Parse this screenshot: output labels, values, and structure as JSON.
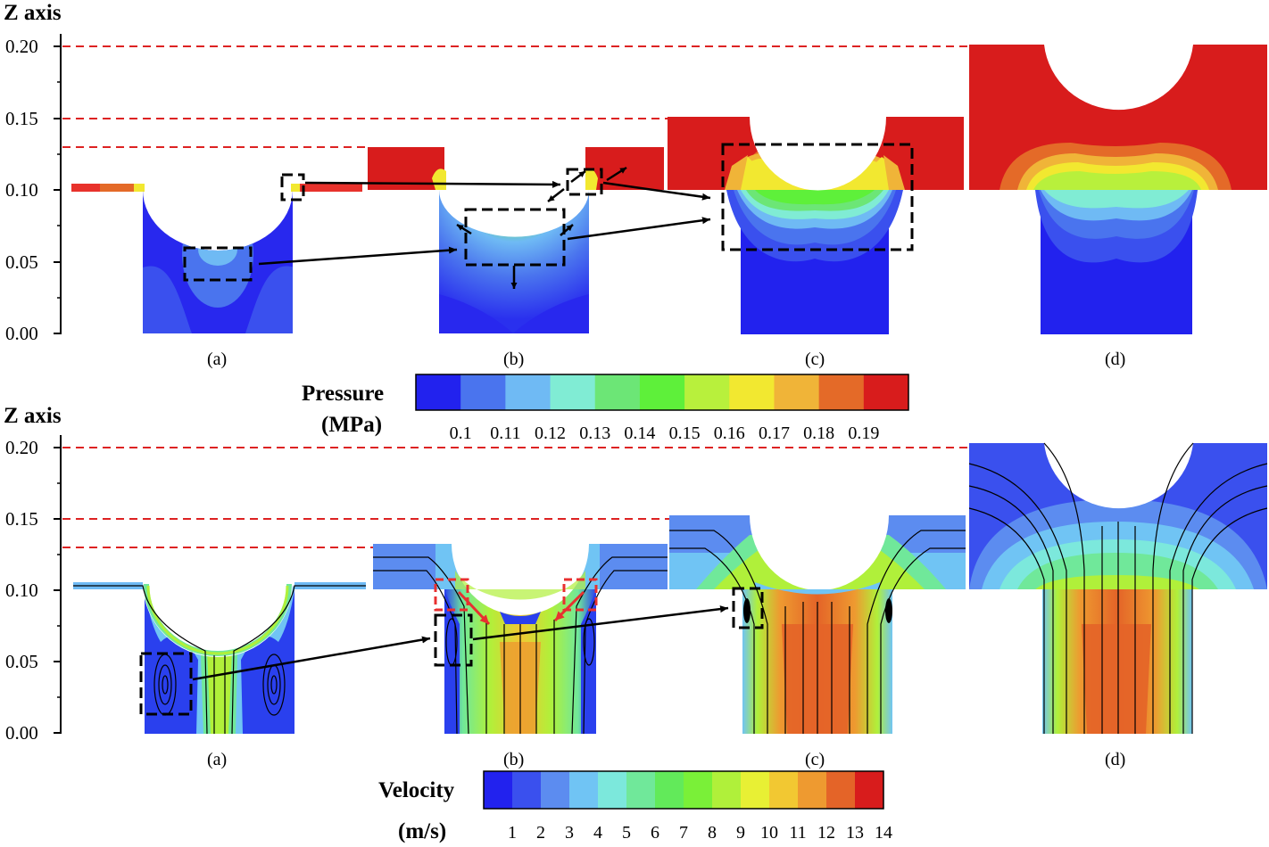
{
  "top": {
    "axis_title": "Z axis",
    "y_ticks": [
      "0.20",
      "0.15",
      "0.10",
      "0.05",
      "0.00"
    ],
    "panel_labels": [
      "(a)",
      "(b)",
      "(c)",
      "(d)"
    ],
    "colorbar": {
      "title_line1": "Pressure",
      "title_line2": "(MPa)",
      "values": [
        "0.1",
        "0.11",
        "0.12",
        "0.13",
        "0.14",
        "0.15",
        "0.16",
        "0.17",
        "0.18",
        "0.19"
      ],
      "colors": [
        "#2222ee",
        "#4a74ee",
        "#6fbaf4",
        "#80ecd4",
        "#6ce676",
        "#5ef03a",
        "#b8f03c",
        "#f2e830",
        "#f0b438",
        "#e46a28",
        "#d81c1c"
      ]
    }
  },
  "bottom": {
    "axis_title": "Z axis",
    "y_ticks": [
      "0.20",
      "0.15",
      "0.10",
      "0.05",
      "0.00"
    ],
    "panel_labels": [
      "(a)",
      "(b)",
      "(c)",
      "(d)"
    ],
    "colorbar": {
      "title_line1": "Velocity",
      "title_line2": "(m/s)",
      "values": [
        "1",
        "2",
        "3",
        "4",
        "5",
        "6",
        "7",
        "8",
        "9",
        "10",
        "11",
        "12",
        "13",
        "14"
      ],
      "colors": [
        "#2222ee",
        "#3a50ee",
        "#5c8cf0",
        "#70c4f4",
        "#7ce8dc",
        "#70e89a",
        "#62ea5a",
        "#7af038",
        "#b0f03a",
        "#e8f034",
        "#f2c832",
        "#ee9a30",
        "#e46428",
        "#d81c1c"
      ]
    }
  },
  "reference_levels": [
    "0.20",
    "0.15",
    "0.13"
  ],
  "colors": {
    "guide_line": "#dd2222",
    "arrow": "#000000"
  }
}
